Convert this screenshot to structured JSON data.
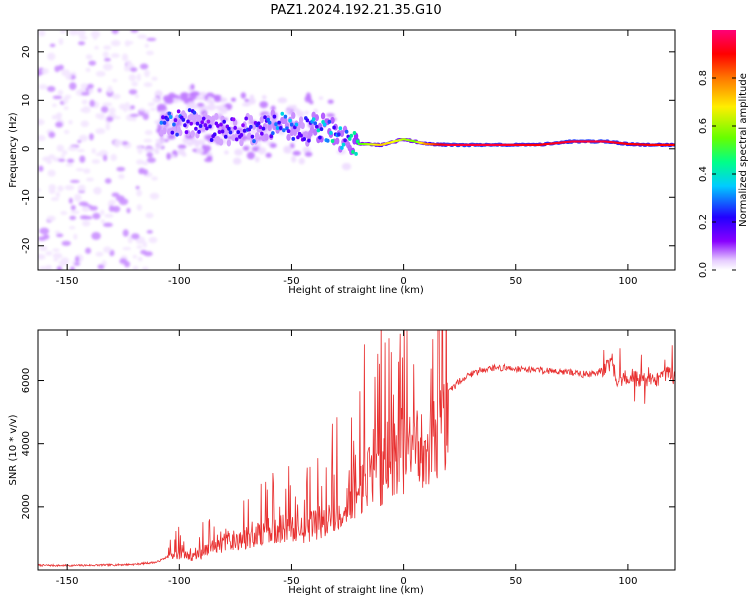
{
  "title": "PAZ1.2024.192.21.35.G10",
  "chart_data": [
    {
      "type": "heatmap",
      "xlabel": "Height of straight line (km)",
      "ylabel": "Frequency (Hz)",
      "xlim": [
        -163,
        121
      ],
      "ylim": [
        -25,
        24.5
      ],
      "xticks": [
        -150,
        -100,
        -50,
        0,
        50,
        100
      ],
      "yticks": [
        -20,
        -10,
        0,
        10,
        20
      ],
      "colorbar": {
        "label": "Normalized spectral amplitude",
        "range": [
          0,
          1
        ],
        "ticks": [
          0.0,
          0.2,
          0.4,
          0.6,
          0.8
        ],
        "colormap": [
          "#ffffff",
          "#e6ccff",
          "#8800ff",
          "#3300ff",
          "#00ccff",
          "#00ff66",
          "#66ff00",
          "#ffff00",
          "#ff8800",
          "#ff0000",
          "#ff0066"
        ]
      },
      "ridge": {
        "description_points_x": [
          -105,
          -95,
          -85,
          -75,
          -65,
          -55,
          -45,
          -35,
          -25,
          -18,
          -10,
          0,
          5,
          10,
          20,
          40,
          60,
          75,
          90,
          100,
          110,
          120
        ],
        "frequency": [
          5,
          6,
          4,
          4,
          4,
          5,
          4,
          4,
          1,
          1,
          0.8,
          2,
          1.5,
          1,
          0.8,
          0.8,
          0.8,
          1.5,
          1.5,
          1.0,
          0.8,
          0.8
        ],
        "amplitude": [
          0.35,
          0.3,
          0.3,
          0.3,
          0.35,
          0.4,
          0.35,
          0.45,
          0.4,
          0.6,
          0.75,
          0.65,
          0.6,
          0.8,
          0.95,
          0.95,
          0.9,
          0.95,
          0.95,
          0.9,
          0.9,
          0.9
        ]
      }
    },
    {
      "type": "line",
      "xlabel": "Height of straight line (km)",
      "ylabel": "SNR (10 * v/v)",
      "xlim": [
        -163,
        121
      ],
      "ylim": [
        0,
        7600
      ],
      "xticks": [
        -150,
        -100,
        -50,
        0,
        50,
        100
      ],
      "yticks": [
        2000,
        4000,
        6000
      ],
      "color": "#e83030",
      "series": [
        {
          "x": [
            -163,
            -150,
            -140,
            -130,
            -120,
            -110,
            -103,
            -100,
            -95,
            -90,
            -85,
            -80,
            -75,
            -70,
            -65,
            -60,
            -55,
            -50,
            -45,
            -40,
            -35,
            -30,
            -25,
            -20,
            -15,
            -10,
            -5,
            0,
            5,
            10,
            15,
            20,
            25,
            30,
            35,
            40,
            45,
            50,
            55,
            60,
            65,
            70,
            75,
            80,
            85,
            90,
            93,
            95,
            100,
            105,
            110,
            115,
            118,
            121
          ],
          "y": [
            150,
            140,
            150,
            160,
            180,
            250,
            500,
            600,
            500,
            600,
            900,
            1000,
            1100,
            1200,
            1300,
            1500,
            1500,
            1600,
            1500,
            1700,
            1900,
            2000,
            2300,
            2800,
            3800,
            3600,
            4000,
            4300,
            4500,
            4700,
            5100,
            5600,
            6000,
            6200,
            6350,
            6400,
            6400,
            6380,
            6350,
            6350,
            6300,
            6300,
            6250,
            6200,
            6200,
            6400,
            6600,
            6000,
            6100,
            6050,
            6000,
            6100,
            6200,
            6100
          ]
        }
      ]
    }
  ]
}
